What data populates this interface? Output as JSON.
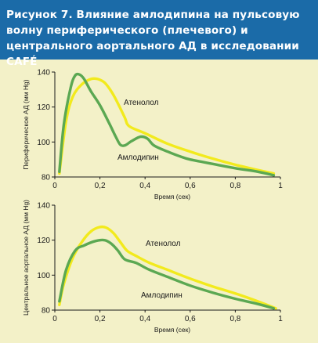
{
  "figure_title": "Рисунок 7. Влияние амлодипина на пульсовую волну периферического (плечевого) и центрального аортального АД в исследовании CAFÉ",
  "colors": {
    "title_background": "#1b6ba8",
    "page_background": "#f3f1c8",
    "amlodipine": "#5ba852",
    "atenolol": "#f2ea1d"
  },
  "chart_data": [
    {
      "type": "line",
      "ylabel": "Периферическое АД (мм Hg)",
      "xlabel": "Время (сек)",
      "xlim": [
        0,
        1
      ],
      "ylim": [
        80,
        140
      ],
      "xticks": [
        "0",
        "0,2",
        "0,4",
        "0,6",
        "0,8",
        "1"
      ],
      "yticks": [
        "80",
        "100",
        "120",
        "140"
      ],
      "series": [
        {
          "name": "Атенолол",
          "color": "#f2ea1d",
          "x": [
            0.02,
            0.05,
            0.08,
            0.12,
            0.16,
            0.19,
            0.22,
            0.25,
            0.28,
            0.31,
            0.33,
            0.4,
            0.5,
            0.6,
            0.7,
            0.8,
            0.9,
            0.97
          ],
          "y": [
            82,
            112,
            126,
            133,
            136,
            136,
            134,
            129,
            122,
            114,
            109,
            105,
            99,
            94.5,
            90.5,
            87,
            84,
            82
          ]
        },
        {
          "name": "Амлодипин",
          "color": "#5ba852",
          "x": [
            0.02,
            0.04,
            0.07,
            0.09,
            0.11,
            0.13,
            0.16,
            0.2,
            0.24,
            0.27,
            0.29,
            0.31,
            0.34,
            0.38,
            0.41,
            0.44,
            0.5,
            0.55,
            0.6,
            0.7,
            0.8,
            0.9,
            0.97
          ],
          "y": [
            83,
            110,
            131,
            138,
            138.5,
            136,
            129,
            121,
            111,
            103,
            98.5,
            98,
            100.5,
            103,
            102,
            98,
            94.5,
            92,
            90,
            87.5,
            85,
            83,
            81
          ]
        }
      ]
    },
    {
      "type": "line",
      "ylabel": "Центральное аортальное АД (мм Hg)",
      "xlabel": "Время (сек)",
      "xlim": [
        0,
        1
      ],
      "ylim": [
        80,
        140
      ],
      "xticks": [
        "0",
        "0,2",
        "0,4",
        "0,6",
        "0,8",
        "1"
      ],
      "yticks": [
        "80",
        "100",
        "120",
        "140"
      ],
      "series": [
        {
          "name": "Атенолол",
          "color": "#f2ea1d",
          "x": [
            0.02,
            0.04,
            0.08,
            0.12,
            0.16,
            0.2,
            0.23,
            0.26,
            0.29,
            0.32,
            0.36,
            0.42,
            0.5,
            0.6,
            0.7,
            0.8,
            0.9,
            0.98
          ],
          "y": [
            83,
            95,
            110,
            119,
            125,
            127.5,
            127,
            124,
            119,
            114,
            111,
            107,
            103,
            98,
            93.5,
            89.5,
            85,
            81
          ]
        },
        {
          "name": "Амлодипин",
          "color": "#5ba852",
          "x": [
            0.02,
            0.05,
            0.09,
            0.13,
            0.18,
            0.22,
            0.25,
            0.28,
            0.31,
            0.36,
            0.42,
            0.5,
            0.6,
            0.7,
            0.8,
            0.9,
            0.97
          ],
          "y": [
            85,
            103,
            114,
            117,
            119.5,
            120,
            118,
            114,
            109,
            107,
            103,
            99,
            94,
            90,
            86.5,
            83.5,
            81
          ]
        }
      ]
    }
  ]
}
